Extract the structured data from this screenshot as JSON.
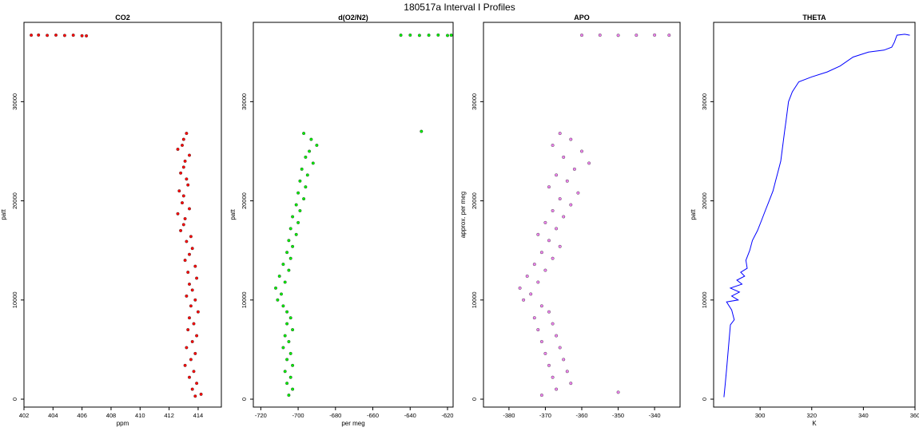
{
  "page": {
    "title": "180517a   Interval I Profiles"
  },
  "chart_data": [
    {
      "type": "scatter",
      "title": "CO2",
      "xlabel": "ppm",
      "ylabel": "patt",
      "xlim": [
        402,
        415.6
      ],
      "ylim": [
        -800,
        38000
      ],
      "xticks": [
        402,
        404,
        406,
        408,
        410,
        412,
        414
      ],
      "yticks": [
        0,
        10000,
        20000,
        30000
      ],
      "color": "#ff0000",
      "series": [
        {
          "points": [
            [
              402.5,
              36700
            ],
            [
              403.0,
              36720
            ],
            [
              403.6,
              36690
            ],
            [
              404.2,
              36710
            ],
            [
              404.8,
              36680
            ],
            [
              405.4,
              36700
            ],
            [
              406.0,
              36650
            ],
            [
              406.3,
              36640
            ],
            [
              413.2,
              26800
            ],
            [
              413.0,
              26200
            ],
            [
              412.9,
              25600
            ],
            [
              412.6,
              25200
            ],
            [
              413.4,
              24600
            ],
            [
              413.1,
              24000
            ],
            [
              413.0,
              23400
            ],
            [
              412.8,
              22800
            ],
            [
              413.2,
              22200
            ],
            [
              413.3,
              21600
            ],
            [
              412.7,
              21000
            ],
            [
              413.0,
              20500
            ],
            [
              412.9,
              19800
            ],
            [
              413.4,
              19200
            ],
            [
              412.6,
              18700
            ],
            [
              413.1,
              18200
            ],
            [
              413.0,
              17600
            ],
            [
              412.8,
              17000
            ],
            [
              413.5,
              16400
            ],
            [
              413.2,
              15900
            ],
            [
              413.6,
              15200
            ],
            [
              413.4,
              14600
            ],
            [
              413.1,
              14000
            ],
            [
              413.8,
              13400
            ],
            [
              413.3,
              12800
            ],
            [
              413.9,
              12200
            ],
            [
              413.4,
              11600
            ],
            [
              413.6,
              11000
            ],
            [
              413.2,
              10400
            ],
            [
              413.8,
              10000
            ],
            [
              413.5,
              9400
            ],
            [
              414.0,
              8800
            ],
            [
              413.4,
              8200
            ],
            [
              413.7,
              7600
            ],
            [
              413.3,
              7000
            ],
            [
              413.9,
              6400
            ],
            [
              413.6,
              5800
            ],
            [
              413.2,
              5200
            ],
            [
              413.8,
              4600
            ],
            [
              413.5,
              4000
            ],
            [
              413.1,
              3400
            ],
            [
              413.7,
              2800
            ],
            [
              413.4,
              2200
            ],
            [
              413.9,
              1600
            ],
            [
              413.6,
              1000
            ],
            [
              414.2,
              500
            ],
            [
              413.8,
              300
            ]
          ]
        }
      ]
    },
    {
      "type": "scatter",
      "title": "d(O2/N2)",
      "xlabel": "per meg",
      "ylabel": "patt",
      "xlim": [
        -724,
        -617
      ],
      "ylim": [
        -800,
        38000
      ],
      "xticks": [
        -720,
        -700,
        -680,
        -660,
        -640,
        -620
      ],
      "yticks": [
        0,
        10000,
        20000,
        30000
      ],
      "color": "#00ee00",
      "series": [
        {
          "points": [
            [
              -645,
              36700
            ],
            [
              -640,
              36710
            ],
            [
              -635,
              36690
            ],
            [
              -630,
              36700
            ],
            [
              -625,
              36720
            ],
            [
              -620,
              36680
            ],
            [
              -618,
              36700
            ],
            [
              -634,
              27000
            ],
            [
              -697,
              26800
            ],
            [
              -693,
              26200
            ],
            [
              -690,
              25600
            ],
            [
              -694,
              25000
            ],
            [
              -696,
              24400
            ],
            [
              -692,
              23800
            ],
            [
              -698,
              23200
            ],
            [
              -695,
              22600
            ],
            [
              -699,
              22000
            ],
            [
              -696,
              21400
            ],
            [
              -700,
              20800
            ],
            [
              -697,
              20200
            ],
            [
              -701,
              19600
            ],
            [
              -699,
              19000
            ],
            [
              -703,
              18400
            ],
            [
              -700,
              17800
            ],
            [
              -704,
              17200
            ],
            [
              -701,
              16600
            ],
            [
              -705,
              16000
            ],
            [
              -703,
              15400
            ],
            [
              -706,
              14800
            ],
            [
              -704,
              14200
            ],
            [
              -708,
              13600
            ],
            [
              -705,
              13000
            ],
            [
              -710,
              12400
            ],
            [
              -707,
              11800
            ],
            [
              -712,
              11200
            ],
            [
              -709,
              10600
            ],
            [
              -711,
              10000
            ],
            [
              -708,
              9400
            ],
            [
              -706,
              8800
            ],
            [
              -704,
              8200
            ],
            [
              -706,
              7600
            ],
            [
              -703,
              7000
            ],
            [
              -707,
              6400
            ],
            [
              -705,
              5800
            ],
            [
              -708,
              5200
            ],
            [
              -704,
              4600
            ],
            [
              -706,
              4000
            ],
            [
              -703,
              3400
            ],
            [
              -707,
              2800
            ],
            [
              -704,
              2200
            ],
            [
              -706,
              1600
            ],
            [
              -703,
              1000
            ],
            [
              -705,
              400
            ]
          ]
        }
      ]
    },
    {
      "type": "scatter",
      "title": "APO",
      "xlabel": "",
      "ylabel": "approx. per meg",
      "xlim": [
        -387,
        -333
      ],
      "ylim": [
        -800,
        38000
      ],
      "xticks": [
        -380,
        -370,
        -360,
        -350,
        -340
      ],
      "yticks": [
        0,
        10000,
        20000,
        30000
      ],
      "color": "#ee82ee",
      "series": [
        {
          "points": [
            [
              -360,
              36700
            ],
            [
              -355,
              36710
            ],
            [
              -350,
              36690
            ],
            [
              -345,
              36700
            ],
            [
              -340,
              36720
            ],
            [
              -336,
              36700
            ],
            [
              -366,
              26800
            ],
            [
              -363,
              26200
            ],
            [
              -368,
              25600
            ],
            [
              -360,
              25000
            ],
            [
              -365,
              24400
            ],
            [
              -358,
              23800
            ],
            [
              -362,
              23200
            ],
            [
              -367,
              22600
            ],
            [
              -364,
              22000
            ],
            [
              -369,
              21400
            ],
            [
              -361,
              20800
            ],
            [
              -366,
              20200
            ],
            [
              -363,
              19600
            ],
            [
              -368,
              19000
            ],
            [
              -365,
              18400
            ],
            [
              -370,
              17800
            ],
            [
              -367,
              17200
            ],
            [
              -372,
              16600
            ],
            [
              -369,
              16000
            ],
            [
              -366,
              15400
            ],
            [
              -371,
              14800
            ],
            [
              -368,
              14200
            ],
            [
              -373,
              13600
            ],
            [
              -370,
              13000
            ],
            [
              -375,
              12400
            ],
            [
              -372,
              11800
            ],
            [
              -377,
              11200
            ],
            [
              -374,
              10600
            ],
            [
              -376,
              10000
            ],
            [
              -371,
              9400
            ],
            [
              -369,
              8800
            ],
            [
              -373,
              8200
            ],
            [
              -368,
              7600
            ],
            [
              -372,
              7000
            ],
            [
              -367,
              6400
            ],
            [
              -371,
              5800
            ],
            [
              -366,
              5200
            ],
            [
              -370,
              4600
            ],
            [
              -365,
              4000
            ],
            [
              -369,
              3400
            ],
            [
              -364,
              2800
            ],
            [
              -368,
              2200
            ],
            [
              -363,
              1600
            ],
            [
              -367,
              1000
            ],
            [
              -371,
              400
            ],
            [
              -350,
              700
            ]
          ]
        }
      ]
    },
    {
      "type": "line",
      "title": "THETA",
      "xlabel": "K",
      "ylabel": "patt",
      "xlim": [
        282,
        360
      ],
      "ylim": [
        -800,
        38000
      ],
      "xticks": [
        300,
        320,
        340,
        360
      ],
      "yticks": [
        0,
        10000,
        20000,
        30000
      ],
      "color": "#0000ff",
      "series": [
        {
          "points": [
            [
              286,
              200
            ],
            [
              286.5,
              1500
            ],
            [
              287.0,
              3000
            ],
            [
              287.5,
              4500
            ],
            [
              288.0,
              6000
            ],
            [
              288.5,
              7500
            ],
            [
              290.0,
              8000
            ],
            [
              289.0,
              9000
            ],
            [
              287.0,
              9800
            ],
            [
              291.5,
              10000
            ],
            [
              289.0,
              10400
            ],
            [
              292.0,
              10800
            ],
            [
              288.5,
              11200
            ],
            [
              293.0,
              11600
            ],
            [
              291.0,
              12000
            ],
            [
              294.0,
              12400
            ],
            [
              292.5,
              12800
            ],
            [
              295.0,
              13200
            ],
            [
              294.5,
              14000
            ],
            [
              296.0,
              15000
            ],
            [
              297.0,
              16000
            ],
            [
              299.0,
              17000
            ],
            [
              300.5,
              18000
            ],
            [
              302.0,
              19000
            ],
            [
              303.5,
              20000
            ],
            [
              305.0,
              21000
            ],
            [
              306.0,
              22000
            ],
            [
              307.0,
              23000
            ],
            [
              308.0,
              24000
            ],
            [
              308.5,
              25000
            ],
            [
              309.0,
              26000
            ],
            [
              309.5,
              27000
            ],
            [
              310.0,
              28000
            ],
            [
              310.5,
              29000
            ],
            [
              311.0,
              30000
            ],
            [
              312.5,
              31000
            ],
            [
              315.0,
              32000
            ],
            [
              320.0,
              32500
            ],
            [
              326.0,
              33000
            ],
            [
              331.0,
              33600
            ],
            [
              336.0,
              34500
            ],
            [
              342.0,
              35000
            ],
            [
              348.0,
              35200
            ],
            [
              351.0,
              35500
            ],
            [
              352.0,
              36000
            ],
            [
              353.0,
              36700
            ],
            [
              356.0,
              36800
            ],
            [
              358.0,
              36700
            ]
          ]
        }
      ]
    }
  ]
}
